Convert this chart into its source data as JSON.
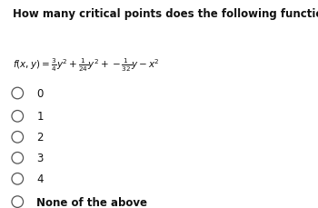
{
  "title": "How many critical points does the following function have?",
  "formula": "$f(x, y)=\\frac{3}{4}y^2+\\frac{1}{24}y^2+-\\frac{1}{32}y-x^2$",
  "options": [
    "0",
    "1",
    "2",
    "3",
    "4",
    "None of the above"
  ],
  "bg_color": "#ffffff",
  "text_color": "#111111",
  "title_fontsize": 8.5,
  "formula_fontsize": 7.5,
  "option_fontsize": 8.5,
  "circle_color": "#555555"
}
